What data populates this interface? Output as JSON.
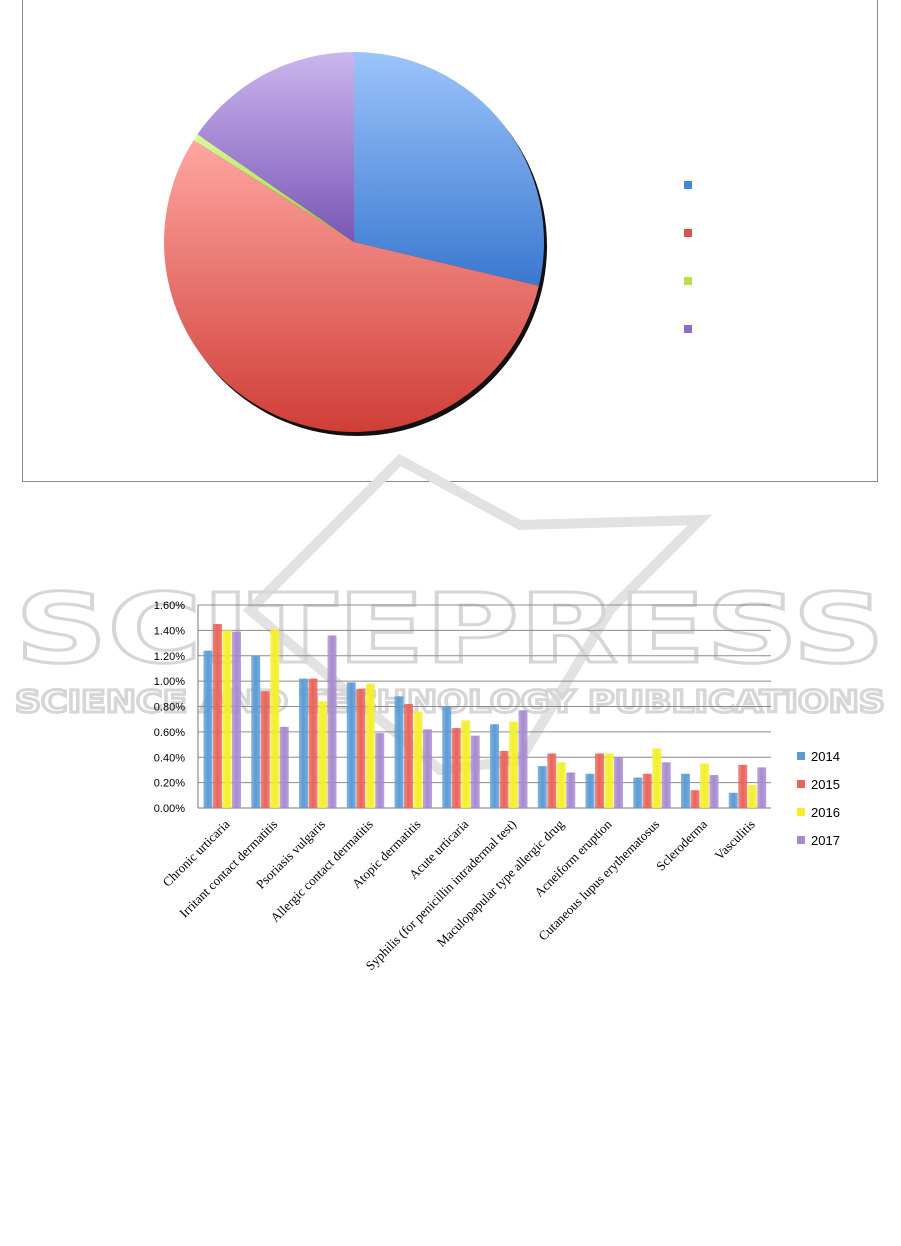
{
  "pie_chart": {
    "chart_data": {
      "type": "pie",
      "values": [
        28.7,
        55.3,
        0.6,
        15.4
      ],
      "colors": [
        "#4a86d8",
        "#d9534f",
        "#b7e04a",
        "#8e6cc2"
      ],
      "legend": [
        "",
        "",
        "",
        ""
      ],
      "legend_position": "right"
    }
  },
  "bar_chart": {
    "chart_data": {
      "type": "bar",
      "categories": [
        "Chronic urticaria",
        "Irritant contact dermatitis",
        "Psoriasis vulgaris",
        "Allergic contact dermatitis",
        "Atopic dermatitis",
        "Acute urticaria",
        "Syphilis (for penicillin intradermal test)",
        "Maculopapular type allergic drug",
        "Acneiform eruption",
        "Cutaneous lupus erythematosus",
        "Scleroderma",
        "Vasculitis"
      ],
      "series": [
        {
          "name": "2014",
          "color": "#5b9bd5",
          "values": [
            1.24,
            1.2,
            1.02,
            0.99,
            0.88,
            0.8,
            0.66,
            0.33,
            0.27,
            0.24,
            0.27,
            0.12
          ]
        },
        {
          "name": "2015",
          "color": "#e8645a",
          "values": [
            1.45,
            0.92,
            1.02,
            0.94,
            0.82,
            0.63,
            0.45,
            0.43,
            0.43,
            0.27,
            0.14,
            0.34
          ]
        },
        {
          "name": "2016",
          "color": "#f3ef2a",
          "values": [
            1.4,
            1.41,
            0.84,
            0.98,
            0.76,
            0.69,
            0.68,
            0.36,
            0.43,
            0.47,
            0.35,
            0.18
          ]
        },
        {
          "name": "2017",
          "color": "#a88ad0",
          "values": [
            1.39,
            0.64,
            1.36,
            0.59,
            0.62,
            0.57,
            0.77,
            0.28,
            0.4,
            0.36,
            0.26,
            0.32
          ]
        }
      ],
      "y_ticks": [
        "0.00%",
        "0.20%",
        "0.40%",
        "0.60%",
        "0.80%",
        "1.00%",
        "1.20%",
        "1.40%",
        "1.60%"
      ],
      "ylim": [
        0,
        1.6
      ],
      "grid": true,
      "legend_position": "right"
    }
  },
  "watermark": {
    "line1": "SCITEPRESS",
    "line2": "SCIENCE AND TECHNOLOGY PUBLICATIONS"
  }
}
